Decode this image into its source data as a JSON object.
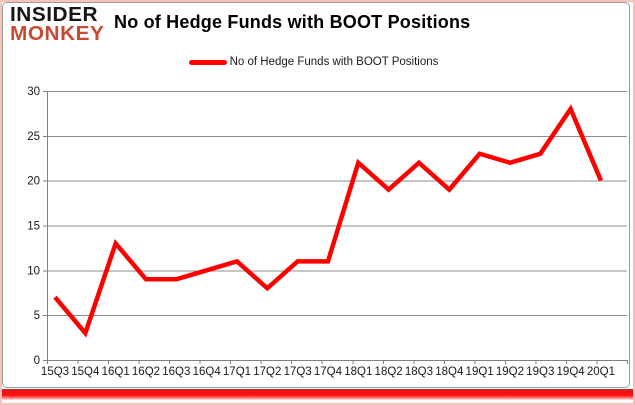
{
  "logo": {
    "line1": "INSIDER",
    "line2": "MONKEY"
  },
  "header": {
    "title": "No of Hedge Funds with BOOT Positions"
  },
  "legend": {
    "label": "No of Hedge Funds with BOOT Positions"
  },
  "colors": {
    "series": "#ff0000",
    "logo_accent": "#c54b33",
    "grid": "#8c8c8c",
    "axis": "#808080",
    "tick_text": "#1a1a1a",
    "accent_bar": "#ff0000",
    "frame_border": "#f6c3ba"
  },
  "chart_data": {
    "type": "line",
    "title": "No of Hedge Funds with BOOT Positions",
    "categories": [
      "15Q3",
      "15Q4",
      "16Q1",
      "16Q2",
      "16Q3",
      "16Q4",
      "17Q1",
      "17Q2",
      "17Q3",
      "17Q4",
      "18Q1",
      "18Q2",
      "18Q3",
      "18Q4",
      "19Q1",
      "19Q2",
      "19Q3",
      "19Q4",
      "20Q1"
    ],
    "values": [
      7,
      3,
      13,
      9,
      9,
      10,
      11,
      8,
      11,
      11,
      22,
      19,
      22,
      19,
      23,
      22,
      23,
      28,
      20
    ],
    "xlabel": "",
    "ylabel": "",
    "y_ticks": [
      0,
      5,
      10,
      15,
      20,
      25,
      30
    ],
    "ylim": [
      0,
      30
    ],
    "grid": "horizontal",
    "legend_position": "top",
    "series_name": "No of Hedge Funds with BOOT Positions",
    "series_color": "#ff0000"
  }
}
